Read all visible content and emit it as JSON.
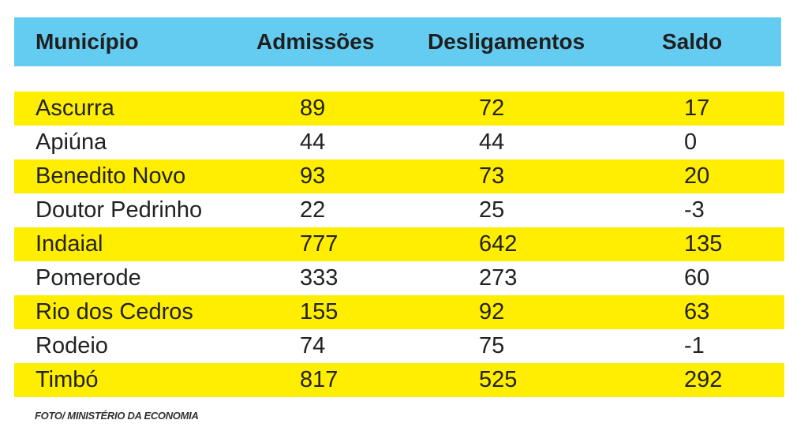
{
  "table": {
    "headers": [
      "Município",
      "Admissões",
      "Desligamentos",
      "Saldo"
    ],
    "rows": [
      [
        "Ascurra",
        "89",
        "72",
        "17"
      ],
      [
        "Apiúna",
        "44",
        "44",
        "0"
      ],
      [
        "Benedito Novo",
        "93",
        "73",
        "20"
      ],
      [
        "Doutor Pedrinho",
        "22",
        "25",
        "-3"
      ],
      [
        "Indaial",
        "777",
        "642",
        "135"
      ],
      [
        "Pomerode",
        "333",
        "273",
        "60"
      ],
      [
        "Rio dos Cedros",
        "155",
        "92",
        "63"
      ],
      [
        "Rodeio",
        "74",
        "75",
        "-1"
      ],
      [
        "Timbó",
        "817",
        "525",
        "292"
      ]
    ]
  },
  "caption": "FOTO/ MINISTÉRIO DA ECONOMIA",
  "colors": {
    "header_bg": "#64cbf1",
    "highlight_row_bg": "#ffee00",
    "text": "#222222"
  }
}
